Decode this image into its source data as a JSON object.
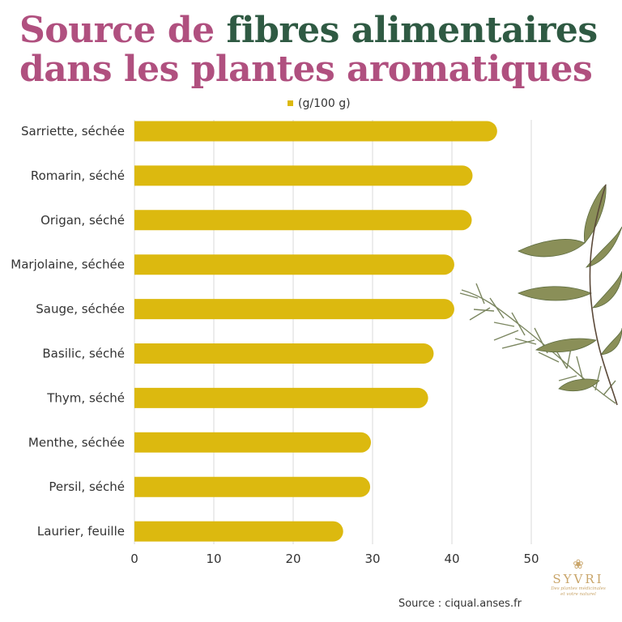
{
  "title": {
    "part1": "Source de ",
    "part2": "fibres alimentaires",
    "line2": "dans les plantes aromatiques"
  },
  "colors": {
    "title_pink": "#b0507f",
    "title_green": "#2f5a43",
    "bar": "#dcb90f",
    "grid": "#d9d9d9",
    "logo": "#c9a56a"
  },
  "chart_data": {
    "type": "bar",
    "orientation": "horizontal",
    "categories": [
      "Sarriette, séchée",
      "Romarin, séché",
      "Origan, séché",
      "Marjolaine, séchée",
      "Sauge, séchée",
      "Basilic, séché",
      "Thym, séché",
      "Menthe, séchée",
      "Persil, séché",
      "Laurier, feuille"
    ],
    "series": [
      {
        "name": "(g/100 g)",
        "values": [
          45.7,
          42.6,
          42.5,
          40.3,
          40.3,
          37.7,
          37.0,
          29.8,
          29.7,
          26.3
        ]
      }
    ],
    "xlim": [
      0,
      50
    ],
    "xticks": [
      "0",
      "10",
      "20",
      "30",
      "40",
      "50"
    ],
    "legend_position": "top-center",
    "grid": true
  },
  "source": "Source : ciqual.anses.fr",
  "logo": {
    "brand": "SYVRI",
    "tagline_1": "Des plantes médicinales",
    "tagline_2": "et votre naturel",
    "flower_icon": "lotus-icon"
  },
  "decoration_icon": "herb-sprig-illustration"
}
